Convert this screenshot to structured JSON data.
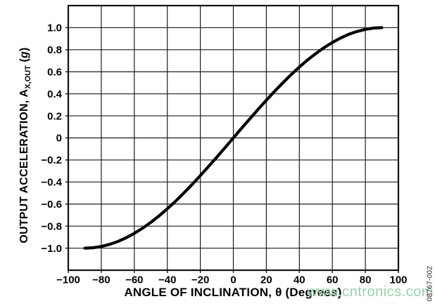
{
  "figure": {
    "watermark": "www.cntronics.com",
    "figure_number": "08767-002",
    "colors": {
      "curve": "#000000",
      "grid": "#1c1c1c",
      "border": "#111111",
      "text": "#000000",
      "watermark": "#96d3a7"
    }
  },
  "chart_data": {
    "type": "line",
    "title": "",
    "xlabel": "ANGLE OF INCLINATION, θ (Degrees)",
    "ylabel": "OUTPUT ACCELERATION, AX,OUT (g)",
    "ylabel_parts": {
      "main": "OUTPUT ACCELERATION, A",
      "sub": "X,OUT",
      "unit_pre": " (",
      "unit_italic": "g",
      "unit_post": ")"
    },
    "xlim": [
      -100,
      100
    ],
    "ylim": [
      -1.2,
      1.2
    ],
    "grid": true,
    "legend": "none",
    "x_ticks": {
      "values": [
        -100,
        -80,
        -60,
        -40,
        -20,
        0,
        20,
        40,
        60,
        80,
        100
      ],
      "labels": [
        "−100",
        "−80",
        "−60",
        "−40",
        "−20",
        "0",
        "20",
        "40",
        "60",
        "80",
        "100"
      ]
    },
    "y_ticks": {
      "values": [
        -1.0,
        -0.8,
        -0.6,
        -0.4,
        -0.2,
        0,
        0.2,
        0.4,
        0.6,
        0.8,
        1.0
      ],
      "labels": [
        "−1.0",
        "−0.8",
        "−0.6",
        "−0.4",
        "−0.2",
        "0",
        "0.2",
        "0.4",
        "0.6",
        "0.8",
        "1.0"
      ]
    },
    "series": [
      {
        "x": [
          -90,
          -85,
          -80,
          -75,
          -70,
          -65,
          -60,
          -55,
          -50,
          -45,
          -40,
          -35,
          -30,
          -25,
          -20,
          -15,
          -10,
          -5,
          0,
          5,
          10,
          15,
          20,
          25,
          30,
          35,
          40,
          45,
          50,
          55,
          60,
          65,
          70,
          75,
          80,
          85,
          90
        ],
        "y": [
          -1.0,
          -0.996,
          -0.985,
          -0.966,
          -0.94,
          -0.906,
          -0.866,
          -0.819,
          -0.766,
          -0.707,
          -0.643,
          -0.574,
          -0.5,
          -0.423,
          -0.342,
          -0.259,
          -0.174,
          -0.087,
          0,
          0.087,
          0.174,
          0.259,
          0.342,
          0.423,
          0.5,
          0.574,
          0.643,
          0.707,
          0.766,
          0.819,
          0.866,
          0.906,
          0.94,
          0.966,
          0.985,
          0.996,
          1.0
        ]
      }
    ]
  }
}
